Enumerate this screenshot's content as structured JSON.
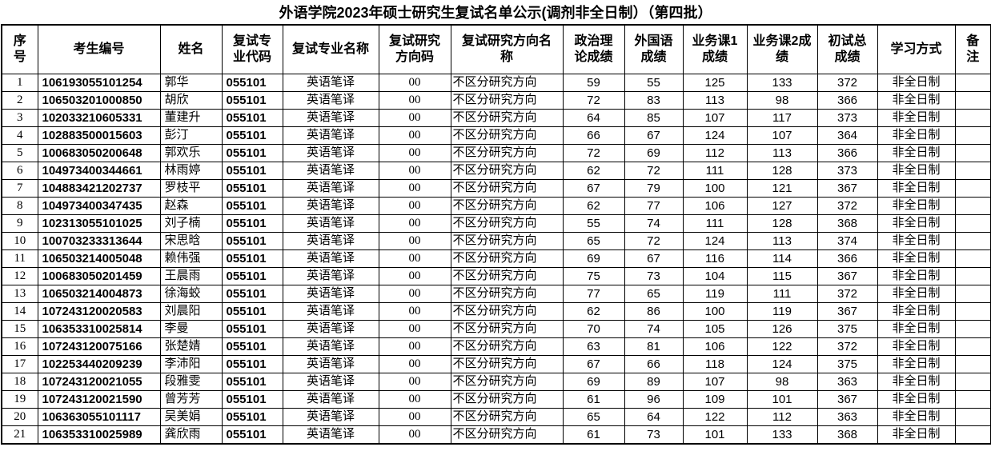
{
  "title": "外语学院2023年硕士研究生复试名单公示(调剂非全日制）（第四批）",
  "table": {
    "headers": [
      "序号",
      "考生编号",
      "姓名",
      "复试专业代码",
      "复试专业名称",
      "复试研究方向码",
      "复试研究方向名称",
      "政治理论成绩",
      "外国语成绩",
      "业务课1成绩",
      "业务课2成绩",
      "初试总成绩",
      "学习方式",
      "备注"
    ],
    "rows": [
      [
        "1",
        "106193055101254",
        "郭华",
        "055101",
        "英语笔译",
        "00",
        "不区分研究方向",
        "59",
        "55",
        "125",
        "133",
        "372",
        "非全日制",
        ""
      ],
      [
        "2",
        "106503201000850",
        "胡欣",
        "055101",
        "英语笔译",
        "00",
        "不区分研究方向",
        "72",
        "83",
        "113",
        "98",
        "366",
        "非全日制",
        ""
      ],
      [
        "3",
        "102033210605331",
        "董建升",
        "055101",
        "英语笔译",
        "00",
        "不区分研究方向",
        "64",
        "85",
        "107",
        "117",
        "373",
        "非全日制",
        ""
      ],
      [
        "4",
        "102883500015603",
        "彭汀",
        "055101",
        "英语笔译",
        "00",
        "不区分研究方向",
        "66",
        "67",
        "124",
        "107",
        "364",
        "非全日制",
        ""
      ],
      [
        "5",
        "100683050200648",
        "郭欢乐",
        "055101",
        "英语笔译",
        "00",
        "不区分研究方向",
        "72",
        "69",
        "112",
        "113",
        "366",
        "非全日制",
        ""
      ],
      [
        "6",
        "104973400344661",
        "林雨婷",
        "055101",
        "英语笔译",
        "00",
        "不区分研究方向",
        "62",
        "72",
        "111",
        "128",
        "373",
        "非全日制",
        ""
      ],
      [
        "7",
        "104883421202737",
        "罗枝平",
        "055101",
        "英语笔译",
        "00",
        "不区分研究方向",
        "67",
        "79",
        "100",
        "121",
        "367",
        "非全日制",
        ""
      ],
      [
        "8",
        "104973400347435",
        "赵森",
        "055101",
        "英语笔译",
        "00",
        "不区分研究方向",
        "62",
        "77",
        "106",
        "127",
        "372",
        "非全日制",
        ""
      ],
      [
        "9",
        "102313055101025",
        "刘子楠",
        "055101",
        "英语笔译",
        "00",
        "不区分研究方向",
        "55",
        "74",
        "111",
        "128",
        "368",
        "非全日制",
        ""
      ],
      [
        "10",
        "100703233313644",
        "宋思晗",
        "055101",
        "英语笔译",
        "00",
        "不区分研究方向",
        "65",
        "72",
        "124",
        "113",
        "374",
        "非全日制",
        ""
      ],
      [
        "11",
        "106503214005048",
        "赖伟强",
        "055101",
        "英语笔译",
        "00",
        "不区分研究方向",
        "69",
        "67",
        "116",
        "114",
        "366",
        "非全日制",
        ""
      ],
      [
        "12",
        "100683050201459",
        "王晨雨",
        "055101",
        "英语笔译",
        "00",
        "不区分研究方向",
        "75",
        "73",
        "104",
        "115",
        "367",
        "非全日制",
        ""
      ],
      [
        "13",
        "106503214004873",
        "徐海蛟",
        "055101",
        "英语笔译",
        "00",
        "不区分研究方向",
        "77",
        "65",
        "119",
        "111",
        "372",
        "非全日制",
        ""
      ],
      [
        "14",
        "107243120020583",
        "刘晨阳",
        "055101",
        "英语笔译",
        "00",
        "不区分研究方向",
        "62",
        "86",
        "100",
        "119",
        "367",
        "非全日制",
        ""
      ],
      [
        "15",
        "106353310025814",
        "李曼",
        "055101",
        "英语笔译",
        "00",
        "不区分研究方向",
        "70",
        "74",
        "105",
        "126",
        "375",
        "非全日制",
        ""
      ],
      [
        "16",
        "107243120075166",
        "张楚婧",
        "055101",
        "英语笔译",
        "00",
        "不区分研究方向",
        "63",
        "81",
        "106",
        "122",
        "372",
        "非全日制",
        ""
      ],
      [
        "17",
        "102253440209239",
        "李沛阳",
        "055101",
        "英语笔译",
        "00",
        "不区分研究方向",
        "67",
        "66",
        "118",
        "124",
        "375",
        "非全日制",
        ""
      ],
      [
        "18",
        "107243120021055",
        "段雅雯",
        "055101",
        "英语笔译",
        "00",
        "不区分研究方向",
        "69",
        "89",
        "107",
        "98",
        "363",
        "非全日制",
        ""
      ],
      [
        "19",
        "107243120021590",
        "曾芳芳",
        "055101",
        "英语笔译",
        "00",
        "不区分研究方向",
        "61",
        "96",
        "109",
        "101",
        "367",
        "非全日制",
        ""
      ],
      [
        "20",
        "106363055101117",
        "吴美娟",
        "055101",
        "英语笔译",
        "00",
        "不区分研究方向",
        "65",
        "64",
        "122",
        "112",
        "363",
        "非全日制",
        ""
      ],
      [
        "21",
        "106353310025989",
        "龚欣雨",
        "055101",
        "英语笔译",
        "00",
        "不区分研究方向",
        "61",
        "73",
        "101",
        "133",
        "368",
        "非全日制",
        ""
      ]
    ]
  }
}
